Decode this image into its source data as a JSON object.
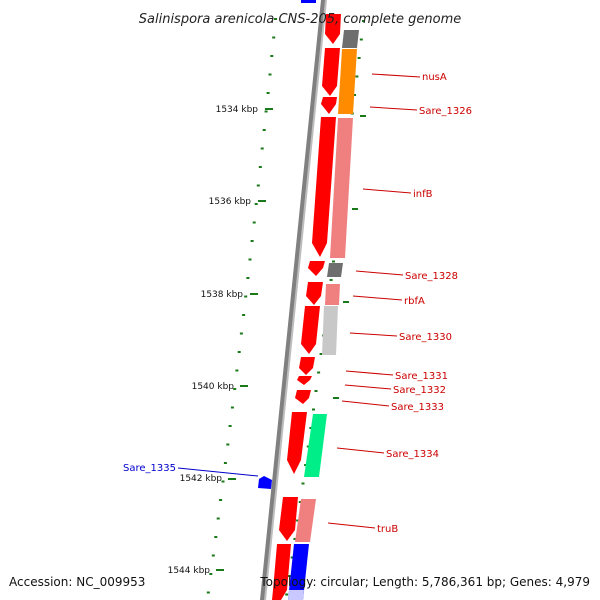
{
  "title": "Salinispora arenicola CNS-205, complete genome",
  "footer": {
    "accession": "Accession: NC_009953",
    "summary": "Topology: circular; Length: 5,786,361 bp; Genes: 4,979"
  },
  "colors": {
    "forward_gene": "#ff0000",
    "reverse_gene": "#0000ff",
    "backbone": "#808080",
    "tick": "#1a7a1a",
    "label_forward": "#cc0000",
    "label_reverse": "#0000cc"
  },
  "scale_labels": [
    "1534 kbp",
    "1536 kbp",
    "1538 kbp",
    "1540 kbp",
    "1542 kbp",
    "1544 kbp"
  ],
  "gene_labels": [
    {
      "name": "nusA",
      "strand": "forward"
    },
    {
      "name": "Sare_1326",
      "strand": "forward"
    },
    {
      "name": "infB",
      "strand": "forward"
    },
    {
      "name": "Sare_1328",
      "strand": "forward"
    },
    {
      "name": "rbfA",
      "strand": "forward"
    },
    {
      "name": "Sare_1330",
      "strand": "forward"
    },
    {
      "name": "Sare_1331",
      "strand": "forward"
    },
    {
      "name": "Sare_1332",
      "strand": "forward"
    },
    {
      "name": "Sare_1333",
      "strand": "forward"
    },
    {
      "name": "Sare_1334",
      "strand": "forward"
    },
    {
      "name": "Sare_1335",
      "strand": "reverse"
    },
    {
      "name": "truB",
      "strand": "forward"
    }
  ]
}
